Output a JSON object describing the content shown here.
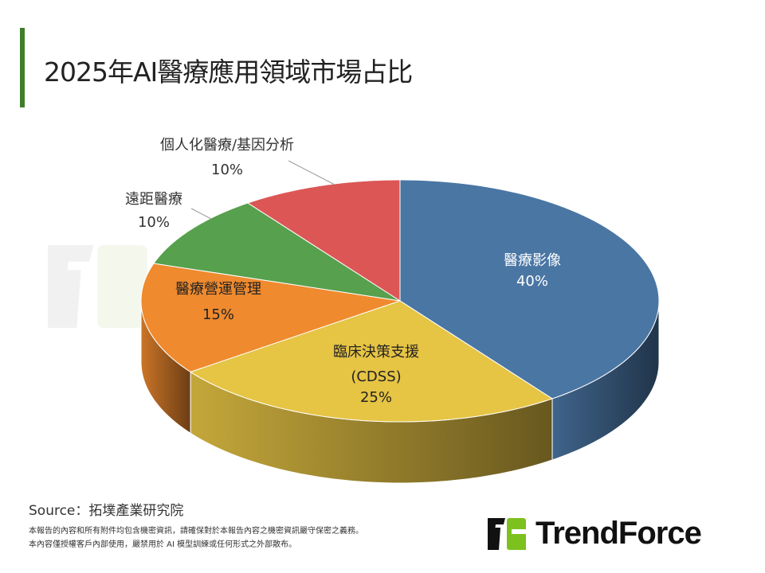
{
  "title": "2025年AI醫療應用領域市場占比",
  "watermark": "TrendForce",
  "chart_data": {
    "type": "pie",
    "style": "3d",
    "title": "2025年AI醫療應用領域市場占比",
    "start": "12 o'clock, clockwise",
    "slices": [
      {
        "label": "醫療影像",
        "value": 40,
        "value_label": "40%",
        "color": "#4a76a4"
      },
      {
        "label": "臨床決策支援",
        "label2": "(CDSS)",
        "value": 25,
        "value_label": "25%",
        "color": "#e6c444"
      },
      {
        "label": "醫療營運管理",
        "value": 15,
        "value_label": "15%",
        "color": "#ef8a2e"
      },
      {
        "label": "遠距醫療",
        "value": 10,
        "value_label": "10%",
        "color": "#57a04d"
      },
      {
        "label": "個人化醫療/基因分析",
        "value": 10,
        "value_label": "10%",
        "color": "#dc5656"
      }
    ]
  },
  "footer": {
    "source": "Source：拓墣產業研究院",
    "note1": "本報告的內容和所有附件均包含機密資訊，請確保對於本報告內容之機密資訊嚴守保密之義務。",
    "note2": "本內容僅授權客戶內部使用，嚴禁用於 AI 模型訓練或任何形式之外部散布。",
    "logo": "TrendForce"
  }
}
